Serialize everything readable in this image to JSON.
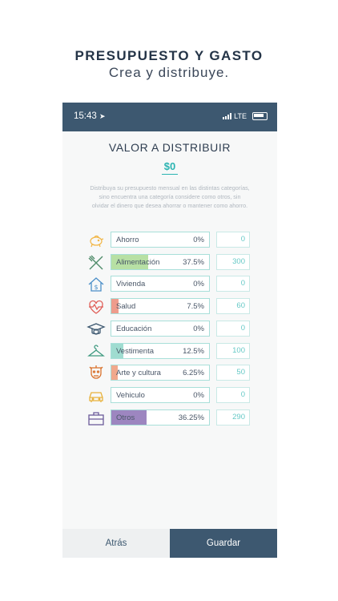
{
  "promo": {
    "headline": "PRESUPUESTO Y GASTO",
    "subline": "Crea y distribuye."
  },
  "status_bar": {
    "time": "15:43",
    "network": "LTE"
  },
  "screen": {
    "title": "VALOR A DISTRIBUIR",
    "amount": "$0",
    "description": "Distribuya su presupuesto mensual en las distintas categorías, sino encuentra una categoría considere como otros, sin olvidar el dinero que desea ahorrar o mantener como ahorro."
  },
  "categories": [
    {
      "label": "Ahorro",
      "percent": "0%",
      "amount": "0",
      "fraction": 0,
      "color": "#9ed0a2",
      "icon": "piggy-bank-icon"
    },
    {
      "label": "Alimentación",
      "percent": "37.5%",
      "amount": "300",
      "fraction": 0.375,
      "color": "#b7e0a4",
      "icon": "fork-knife-icon"
    },
    {
      "label": "Vivienda",
      "percent": "0%",
      "amount": "0",
      "fraction": 0,
      "color": "#9fc3e2",
      "icon": "house-dollar-icon"
    },
    {
      "label": "Salud",
      "percent": "7.5%",
      "amount": "60",
      "fraction": 0.075,
      "color": "#ee9c8c",
      "icon": "heart-pulse-icon"
    },
    {
      "label": "Educación",
      "percent": "0%",
      "amount": "0",
      "fraction": 0,
      "color": "#9fc3e2",
      "icon": "graduation-cap-icon"
    },
    {
      "label": "Vestimenta",
      "percent": "12.5%",
      "amount": "100",
      "fraction": 0.125,
      "color": "#9fdcd0",
      "icon": "hanger-icon"
    },
    {
      "label": "Arte y cultura",
      "percent": "6.25%",
      "amount": "50",
      "fraction": 0.0625,
      "color": "#f0a88c",
      "icon": "mask-icon"
    },
    {
      "label": "Vehiculo",
      "percent": "0%",
      "amount": "0",
      "fraction": 0,
      "color": "#f4d28a",
      "icon": "car-icon"
    },
    {
      "label": "Otros",
      "percent": "36.25%",
      "amount": "290",
      "fraction": 0.3625,
      "color": "#9d86c0",
      "icon": "briefcase-icon"
    }
  ],
  "footer": {
    "back_label": "Atrás",
    "save_label": "Guardar"
  }
}
